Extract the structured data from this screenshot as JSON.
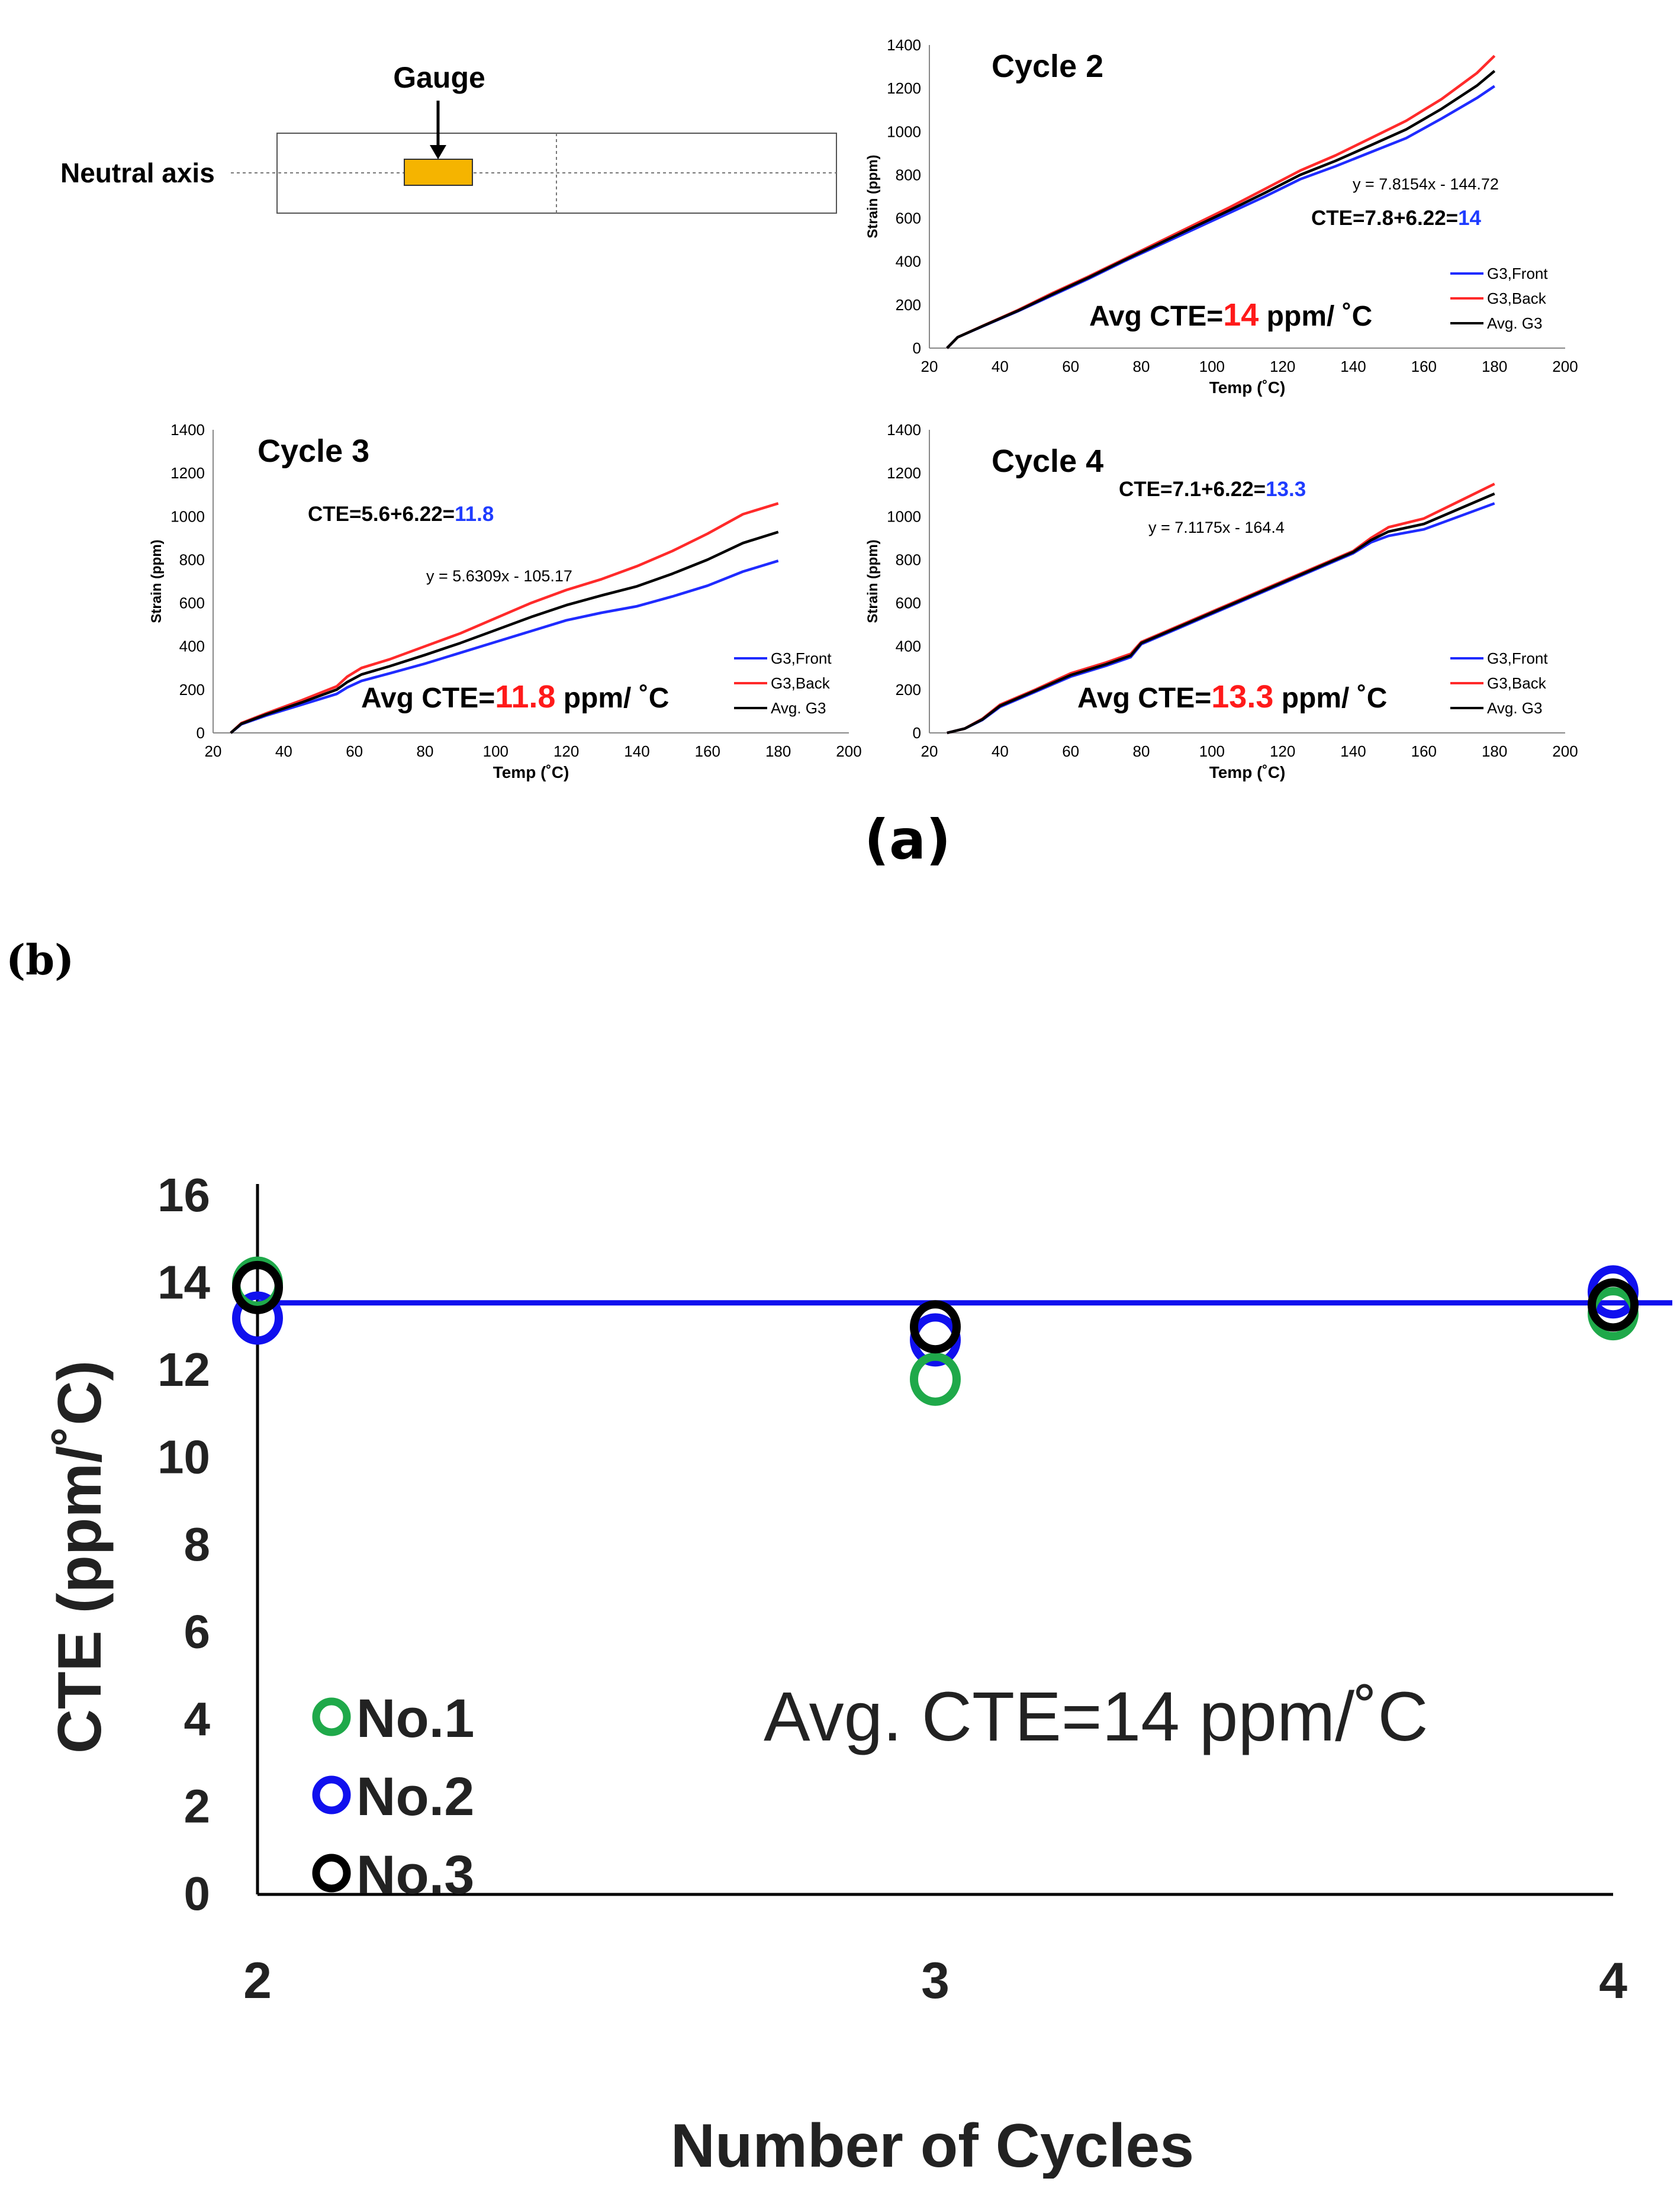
{
  "panel_a_label": "(a)",
  "panel_b_label": "(b)",
  "diagram": {
    "gauge_label": "Gauge",
    "neutral_axis_label": "Neutral axis",
    "gauge_color": "#f5b400"
  },
  "colors": {
    "front": "#1f2bff",
    "back": "#ff2a2a",
    "avg": "#000000",
    "highlight_red": "#ff1a1a",
    "highlight_blue": "#1f3cff",
    "no1": "#1fa94a",
    "no2": "#1010ee",
    "no3": "#000000",
    "avg_line": "#1010ee"
  },
  "chart_data": [
    {
      "type": "line",
      "id": "cycle2",
      "title": "Cycle 2",
      "xlabel": "Temp (˚C)",
      "ylabel": "Strain (ppm)",
      "xlim": [
        20,
        200
      ],
      "ylim": [
        0,
        1400
      ],
      "xticks": [
        20,
        40,
        60,
        80,
        100,
        120,
        140,
        160,
        180,
        200
      ],
      "yticks": [
        0,
        200,
        400,
        600,
        800,
        1000,
        1200,
        1400
      ],
      "equation": "y = 7.8154x - 144.72",
      "cte_formula_prefix": "CTE=7.8+6.22=",
      "cte_formula_value": "14",
      "avg_cte_prefix": "Avg CTE=",
      "avg_cte_value": "14",
      "avg_cte_suffix": " ppm/ ˚C",
      "legend": [
        "G3,Front",
        "G3,Back",
        "Avg. G3"
      ],
      "series": [
        {
          "name": "G3,Front",
          "x": [
            25,
            28,
            35,
            45,
            55,
            65,
            75,
            85,
            95,
            105,
            115,
            125,
            135,
            145,
            155,
            165,
            175,
            180
          ],
          "y": [
            0,
            50,
            100,
            170,
            245,
            320,
            400,
            475,
            550,
            625,
            700,
            780,
            840,
            905,
            970,
            1060,
            1155,
            1210
          ]
        },
        {
          "name": "G3,Back",
          "x": [
            25,
            28,
            35,
            45,
            55,
            65,
            75,
            85,
            95,
            105,
            115,
            125,
            135,
            145,
            155,
            165,
            175,
            180
          ],
          "y": [
            0,
            50,
            102,
            175,
            255,
            330,
            410,
            490,
            570,
            650,
            735,
            820,
            890,
            970,
            1050,
            1150,
            1270,
            1350
          ]
        },
        {
          "name": "Avg. G3",
          "x": [
            25,
            28,
            35,
            45,
            55,
            65,
            75,
            85,
            95,
            105,
            115,
            125,
            135,
            145,
            155,
            165,
            175,
            180
          ],
          "y": [
            0,
            50,
            101,
            172,
            250,
            325,
            405,
            482,
            560,
            637,
            717,
            800,
            865,
            937,
            1010,
            1105,
            1212,
            1280
          ]
        }
      ]
    },
    {
      "type": "line",
      "id": "cycle3",
      "title": "Cycle 3",
      "xlabel": "Temp (˚C)",
      "ylabel": "Strain (ppm)",
      "xlim": [
        20,
        200
      ],
      "ylim": [
        0,
        1400
      ],
      "xticks": [
        20,
        40,
        60,
        80,
        100,
        120,
        140,
        160,
        180,
        200
      ],
      "yticks": [
        0,
        200,
        400,
        600,
        800,
        1000,
        1200,
        1400
      ],
      "equation": "y = 5.6309x - 105.17",
      "cte_formula_prefix": "CTE=5.6+6.22=",
      "cte_formula_value": "11.8",
      "avg_cte_prefix": "Avg CTE=",
      "avg_cte_value": "11.8",
      "avg_cte_suffix": " ppm/ ˚C",
      "legend": [
        "G3,Front",
        "G3,Back",
        "Avg. G3"
      ],
      "series": [
        {
          "name": "G3,Front",
          "x": [
            25,
            28,
            35,
            45,
            55,
            58,
            62,
            70,
            80,
            90,
            100,
            110,
            120,
            130,
            140,
            150,
            160,
            170,
            180
          ],
          "y": [
            0,
            40,
            80,
            130,
            180,
            210,
            240,
            275,
            320,
            370,
            420,
            470,
            520,
            555,
            585,
            630,
            680,
            745,
            795
          ]
        },
        {
          "name": "G3,Back",
          "x": [
            25,
            28,
            35,
            45,
            55,
            58,
            62,
            70,
            80,
            90,
            100,
            110,
            120,
            130,
            140,
            150,
            160,
            170,
            180
          ],
          "y": [
            0,
            45,
            90,
            150,
            215,
            260,
            300,
            340,
            400,
            460,
            530,
            600,
            660,
            710,
            770,
            840,
            920,
            1010,
            1060
          ]
        },
        {
          "name": "Avg. G3",
          "x": [
            25,
            28,
            35,
            45,
            55,
            58,
            62,
            70,
            80,
            90,
            100,
            110,
            120,
            130,
            140,
            150,
            160,
            170,
            180
          ],
          "y": [
            0,
            42,
            85,
            140,
            200,
            235,
            270,
            308,
            360,
            415,
            475,
            535,
            590,
            635,
            677,
            735,
            800,
            877,
            928
          ]
        }
      ]
    },
    {
      "type": "line",
      "id": "cycle4",
      "title": "Cycle 4",
      "xlabel": "Temp (˚C)",
      "ylabel": "Strain (ppm)",
      "xlim": [
        20,
        200
      ],
      "ylim": [
        0,
        1400
      ],
      "xticks": [
        20,
        40,
        60,
        80,
        100,
        120,
        140,
        160,
        180,
        200
      ],
      "yticks": [
        0,
        200,
        400,
        600,
        800,
        1000,
        1200,
        1400
      ],
      "equation": "y = 7.1175x - 164.4",
      "cte_formula_prefix": "CTE=7.1+6.22=",
      "cte_formula_value": "13.3",
      "avg_cte_prefix": "Avg CTE=",
      "avg_cte_value": "13.3",
      "avg_cte_suffix": " ppm/ ˚C",
      "legend": [
        "G3,Front",
        "G3,Back",
        "Avg. G3"
      ],
      "series": [
        {
          "name": "G3,Front",
          "x": [
            25,
            30,
            35,
            40,
            50,
            60,
            70,
            77,
            80,
            90,
            100,
            110,
            120,
            130,
            140,
            145,
            150,
            160,
            170,
            180
          ],
          "y": [
            0,
            20,
            60,
            120,
            190,
            260,
            310,
            350,
            410,
            480,
            550,
            620,
            690,
            760,
            830,
            880,
            910,
            940,
            1000,
            1060
          ]
        },
        {
          "name": "G3,Back",
          "x": [
            25,
            30,
            35,
            40,
            50,
            60,
            70,
            77,
            80,
            90,
            100,
            110,
            120,
            130,
            140,
            145,
            150,
            160,
            170,
            180
          ],
          "y": [
            0,
            20,
            65,
            130,
            200,
            275,
            325,
            365,
            420,
            490,
            560,
            630,
            700,
            770,
            840,
            900,
            950,
            990,
            1070,
            1150
          ]
        },
        {
          "name": "Avg. G3",
          "x": [
            25,
            30,
            35,
            40,
            50,
            60,
            70,
            77,
            80,
            90,
            100,
            110,
            120,
            130,
            140,
            145,
            150,
            160,
            170,
            180
          ],
          "y": [
            0,
            20,
            62,
            125,
            195,
            267,
            317,
            357,
            415,
            485,
            555,
            625,
            695,
            765,
            835,
            890,
            930,
            965,
            1035,
            1105
          ]
        }
      ]
    },
    {
      "type": "scatter",
      "id": "cte_cycles",
      "title": "",
      "xlabel": "Number of Cycles",
      "ylabel": "CTE (ppm/˚C)",
      "xticks": [
        2,
        3,
        4
      ],
      "ylim": [
        0,
        16
      ],
      "yticks": [
        0,
        2,
        4,
        6,
        8,
        10,
        12,
        14,
        16
      ],
      "annotation": "Avg. CTE=14 ppm/˚C",
      "avg_line_value": 13.55,
      "legend": [
        "No.1",
        "No.2",
        "No.3"
      ],
      "series": [
        {
          "name": "No.1",
          "x": [
            2,
            3,
            4
          ],
          "y": [
            14.0,
            11.8,
            13.3
          ]
        },
        {
          "name": "No.2",
          "x": [
            2,
            3,
            4
          ],
          "y": [
            13.2,
            12.7,
            13.8
          ]
        },
        {
          "name": "No.3",
          "x": [
            2,
            3,
            4
          ],
          "y": [
            13.9,
            13.0,
            13.5
          ]
        }
      ]
    }
  ]
}
